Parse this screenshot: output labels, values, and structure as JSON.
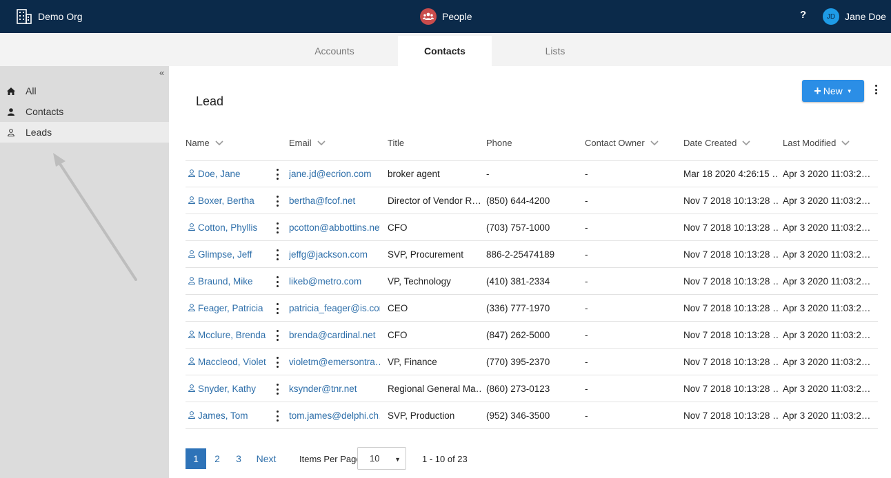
{
  "topbar": {
    "org_name": "Demo Org",
    "org_icon": "building-icon",
    "app_name": "People",
    "app_icon": "people-icon",
    "help_label": "?",
    "user_initials": "JD",
    "user_name": "Jane Doe"
  },
  "tabs": [
    {
      "label": "Accounts",
      "active": false
    },
    {
      "label": "Contacts",
      "active": true
    },
    {
      "label": "Lists",
      "active": false
    }
  ],
  "sidebar": {
    "collapse_label": "«",
    "items": [
      {
        "label": "All",
        "icon": "home-icon",
        "active": false
      },
      {
        "label": "Contacts",
        "icon": "person-icon",
        "active": false
      },
      {
        "label": "Leads",
        "icon": "person-outline-icon",
        "active": true
      }
    ]
  },
  "main": {
    "title": "Lead",
    "new_button_label": "New",
    "columns": [
      "Name",
      "Email",
      "Title",
      "Phone",
      "Contact Owner",
      "Date Created",
      "Last Modified"
    ],
    "rows": [
      {
        "name": "Doe, Jane",
        "email": "jane.jd@ecrion.com",
        "title": "broker agent",
        "phone": "-",
        "owner": "-",
        "created": "Mar 18 2020 4:26:15 …",
        "modified": "Apr 3 2020 11:03:2…"
      },
      {
        "name": "Boxer, Bertha",
        "email": "bertha@fcof.net",
        "title": "Director of Vendor R…",
        "phone": "(850) 644-4200",
        "owner": "-",
        "created": "Nov 7 2018 10:13:28 …",
        "modified": "Apr 3 2020 11:03:2…"
      },
      {
        "name": "Cotton, Phyllis",
        "email": "pcotton@abbottins.net",
        "title": "CFO",
        "phone": "(703) 757-1000",
        "owner": "-",
        "created": "Nov 7 2018 10:13:28 …",
        "modified": "Apr 3 2020 11:03:2…"
      },
      {
        "name": "Glimpse, Jeff",
        "email": "jeffg@jackson.com",
        "title": "SVP, Procurement",
        "phone": "886-2-25474189",
        "owner": "-",
        "created": "Nov 7 2018 10:13:28 …",
        "modified": "Apr 3 2020 11:03:2…"
      },
      {
        "name": "Braund, Mike",
        "email": "likeb@metro.com",
        "title": "VP, Technology",
        "phone": "(410) 381-2334",
        "owner": "-",
        "created": "Nov 7 2018 10:13:28 …",
        "modified": "Apr 3 2020 11:03:2…"
      },
      {
        "name": "Feager, Patricia",
        "email": "patricia_feager@is.com",
        "title": "CEO",
        "phone": "(336) 777-1970",
        "owner": "-",
        "created": "Nov 7 2018 10:13:28 …",
        "modified": "Apr 3 2020 11:03:2…"
      },
      {
        "name": "Mcclure, Brenda",
        "email": "brenda@cardinal.net",
        "title": "CFO",
        "phone": "(847) 262-5000",
        "owner": "-",
        "created": "Nov 7 2018 10:13:28 …",
        "modified": "Apr 3 2020 11:03:2…"
      },
      {
        "name": "Maccleod, Violet",
        "email": "violetm@emersontra…",
        "title": "VP, Finance",
        "phone": "(770) 395-2370",
        "owner": "-",
        "created": "Nov 7 2018 10:13:28 …",
        "modified": "Apr 3 2020 11:03:2…"
      },
      {
        "name": "Snyder, Kathy",
        "email": "ksynder@tnr.net",
        "title": "Regional General Ma…",
        "phone": "(860) 273-0123",
        "owner": "-",
        "created": "Nov 7 2018 10:13:28 …",
        "modified": "Apr 3 2020 11:03:2…"
      },
      {
        "name": "James, Tom",
        "email": "tom.james@delphi.ch…",
        "title": "SVP, Production",
        "phone": "(952) 346-3500",
        "owner": "-",
        "created": "Nov 7 2018 10:13:28 …",
        "modified": "Apr 3 2020 11:03:2…"
      }
    ]
  },
  "pagination": {
    "pages": [
      "1",
      "2",
      "3"
    ],
    "current_page": "1",
    "next_label": "Next",
    "items_per_page_label": "Items Per Page",
    "items_per_page_value": "10",
    "range_text": "1 - 10 of 23"
  },
  "colors": {
    "topbar_bg": "#0b2a4a",
    "accent_blue": "#2b8ee6",
    "link_blue": "#2e6faa",
    "app_icon_red": "#c94c4c",
    "sidebar_bg": "#dcdcdc"
  }
}
